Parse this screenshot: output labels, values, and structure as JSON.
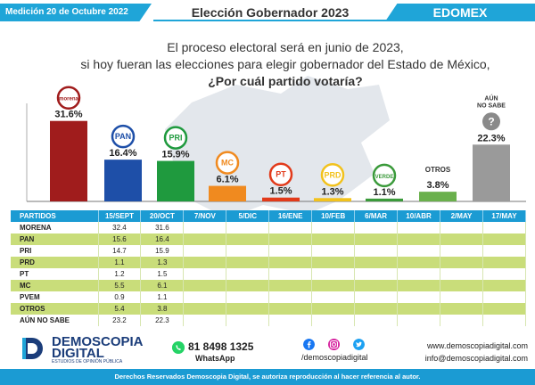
{
  "header": {
    "date": "Medición 20 de Octubre 2022",
    "title": "Elección Gobernador 2023",
    "state": "EDOMEX"
  },
  "question": {
    "line1": "El proceso electoral será en junio de 2023,",
    "line2": "si hoy fueran las elecciones para elegir gobernador del Estado de México,",
    "line3": "¿Por cuál partido votaría?"
  },
  "chart_data": {
    "type": "bar",
    "categories": [
      "MORENA",
      "PAN",
      "PRI",
      "MC",
      "PT",
      "PRD",
      "PVEM",
      "OTROS",
      "AÚN NO SABE"
    ],
    "badges": [
      "morena",
      "PAN",
      "PRI",
      "MC",
      "PT",
      "PRD",
      "VERDE",
      "OTROS",
      "AÚN NO SABE"
    ],
    "values": [
      31.6,
      16.4,
      15.9,
      6.1,
      1.5,
      1.3,
      1.1,
      3.8,
      22.3
    ],
    "labels": [
      "31.6%",
      "16.4%",
      "15.9%",
      "6.1%",
      "1.5%",
      "1.3%",
      "1.1%",
      "3.8%",
      "22.3%"
    ],
    "colors": [
      "#a01c1c",
      "#1e4fa8",
      "#1f9a3e",
      "#f08a1f",
      "#e23a1a",
      "#f2c21c",
      "#3a9a3a",
      "#6ab04c",
      "#9a9a9a"
    ],
    "ylim": [
      0,
      35
    ]
  },
  "table": {
    "headers": [
      "PARTIDOS",
      "15/SEPT",
      "20/OCT",
      "7/NOV",
      "5/DIC",
      "16/ENE",
      "10/FEB",
      "6/MAR",
      "10/ABR",
      "2/MAY",
      "17/MAY"
    ],
    "rows": [
      [
        "MORENA",
        "32.4",
        "31.6",
        "",
        "",
        "",
        "",
        "",
        "",
        "",
        ""
      ],
      [
        "PAN",
        "15.6",
        "16.4",
        "",
        "",
        "",
        "",
        "",
        "",
        "",
        ""
      ],
      [
        "PRI",
        "14.7",
        "15.9",
        "",
        "",
        "",
        "",
        "",
        "",
        "",
        ""
      ],
      [
        "PRD",
        "1.1",
        "1.3",
        "",
        "",
        "",
        "",
        "",
        "",
        "",
        ""
      ],
      [
        "PT",
        "1.2",
        "1.5",
        "",
        "",
        "",
        "",
        "",
        "",
        "",
        ""
      ],
      [
        "MC",
        "5.5",
        "6.1",
        "",
        "",
        "",
        "",
        "",
        "",
        "",
        ""
      ],
      [
        "PVEM",
        "0.9",
        "1.1",
        "",
        "",
        "",
        "",
        "",
        "",
        "",
        ""
      ],
      [
        "OTROS",
        "5.4",
        "3.8",
        "",
        "",
        "",
        "",
        "",
        "",
        "",
        ""
      ],
      [
        "AÚN NO SABE",
        "23.2",
        "22.3",
        "",
        "",
        "",
        "",
        "",
        "",
        "",
        ""
      ]
    ]
  },
  "footer": {
    "logo_line1": "DEMOSCOPIA",
    "logo_line2": "DIGITAL",
    "logo_line3": "ESTUDIOS DE OPINIÓN PÚBLICA",
    "phone": "81 8498 1325",
    "whatsapp": "WhatsApp",
    "social_handle": "/demoscopiadigital",
    "website": "www.demoscopiadigital.com",
    "email": "info@demoscopiadigital.com",
    "rights": "Derechos Reservados Demoscopia Digital, se autoriza reproducción al hacer referencia al autor."
  },
  "colors": {
    "accent": "#1fa5d8",
    "table_header": "#1b9bd3",
    "row_highlight": "#c9dd7a"
  }
}
